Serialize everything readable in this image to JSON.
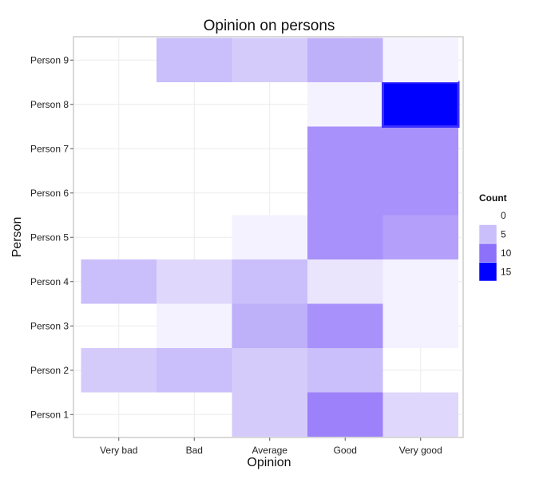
{
  "chart_data": {
    "type": "heatmap",
    "title": "Opinion on persons",
    "xlabel": "Opinion",
    "ylabel": "Person",
    "x": [
      "Very bad",
      "Bad",
      "Average",
      "Good",
      "Very good"
    ],
    "y": [
      "Person 1",
      "Person 2",
      "Person 3",
      "Person 4",
      "Person 5",
      "Person 6",
      "Person 7",
      "Person 8",
      "Person 9"
    ],
    "values": [
      [
        0,
        0,
        4,
        9,
        3
      ],
      [
        4,
        5,
        4,
        5,
        0
      ],
      [
        0,
        1,
        6,
        8,
        1
      ],
      [
        5,
        3,
        5,
        2,
        1
      ],
      [
        0,
        0,
        1,
        8,
        7
      ],
      [
        0,
        0,
        0,
        8,
        8
      ],
      [
        0,
        0,
        0,
        8,
        8
      ],
      [
        0,
        0,
        0,
        1,
        16
      ],
      [
        0,
        5,
        4,
        6,
        1
      ]
    ],
    "legend": {
      "title": "Count",
      "labels": [
        "0",
        "5",
        "10",
        "15"
      ],
      "placement": "right"
    },
    "color_scale": {
      "low": "#ffffff",
      "high": "#0000ff",
      "max": 16
    },
    "grid": true
  }
}
